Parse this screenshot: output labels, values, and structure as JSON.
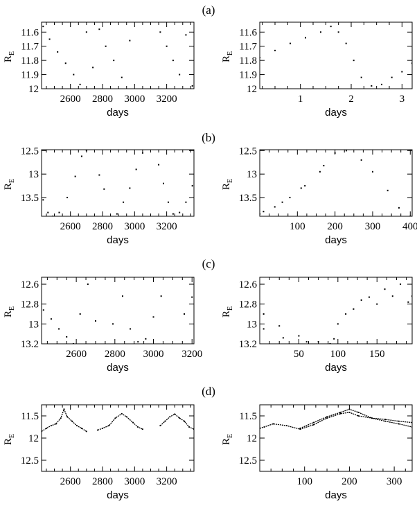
{
  "chart_data": [
    {
      "type": "scatter",
      "row_label": "(a)",
      "ylabel": "R",
      "ylabel_sub": "E",
      "xlabel": "days",
      "xlim": [
        2420,
        3370
      ],
      "ylim": [
        12.0,
        11.53
      ],
      "y_inverted": true,
      "xticks": [
        2600,
        2800,
        3000,
        3200
      ],
      "yticks": [
        11.6,
        11.7,
        11.8,
        11.9,
        12
      ],
      "ytick_labels": [
        "11.6",
        "11.7",
        "11.8",
        "11.9",
        "12"
      ],
      "series": [
        {
          "kind": "scatter",
          "segments": [
            {
              "x": [
                2430,
                2470,
                2520,
                2570,
                2620,
                2660,
                2700,
                2740
              ],
              "y": [
                11.56,
                11.65,
                11.74,
                11.82,
                11.9,
                11.97,
                11.6,
                11.85
              ]
            },
            {
              "x": [
                2780,
                2820,
                2870,
                2920,
                2970
              ],
              "y": [
                11.58,
                11.7,
                11.8,
                11.92,
                11.66
              ]
            },
            {
              "x": [
                3160,
                3200,
                3240,
                3280,
                3320,
                3360
              ],
              "y": [
                11.6,
                11.7,
                11.8,
                11.9,
                11.62,
                11.98
              ]
            }
          ]
        }
      ]
    },
    {
      "type": "scatter",
      "row_label": "",
      "ylabel": "R",
      "ylabel_sub": "E",
      "xlabel": "days",
      "xlim": [
        0.2,
        3.2
      ],
      "ylim": [
        12.0,
        11.53
      ],
      "y_inverted": true,
      "xticks": [
        1,
        2,
        3
      ],
      "yticks": [
        11.6,
        11.7,
        11.8,
        11.9,
        12
      ],
      "ytick_labels": [
        "11.6",
        "11.7",
        "11.8",
        "11.9",
        "12"
      ],
      "series": [
        {
          "kind": "scatter",
          "segments": [
            {
              "x": [
                0.2,
                0.5,
                0.8,
                1.1,
                1.4,
                1.6,
                1.75,
                1.9,
                2.05,
                2.2,
                2.4,
                2.6,
                2.8,
                3.0,
                3.2
              ],
              "y": [
                11.78,
                11.73,
                11.68,
                11.64,
                11.6,
                11.56,
                11.6,
                11.68,
                11.8,
                11.92,
                11.98,
                11.97,
                11.92,
                11.88,
                11.82
              ]
            }
          ]
        }
      ]
    },
    {
      "type": "scatter",
      "row_label": "(b)",
      "ylabel": "R",
      "ylabel_sub": "E",
      "xlabel": "days",
      "xlim": [
        2420,
        3370
      ],
      "ylim": [
        13.9,
        12.48
      ],
      "y_inverted": true,
      "xticks": [
        2600,
        2800,
        3000,
        3200
      ],
      "yticks": [
        12.5,
        13,
        13.5
      ],
      "ytick_labels": [
        "12.5",
        "13",
        "13.5"
      ],
      "series": [
        {
          "kind": "scatter",
          "segments": [
            {
              "x": [
                2430,
                2460,
                2490,
                2530,
                2580,
                2630,
                2670,
                2700
              ],
              "y": [
                13.55,
                13.82,
                13.9,
                13.82,
                13.5,
                13.05,
                12.62,
                12.5
              ]
            },
            {
              "x": [
                2780,
                2810
              ],
              "y": [
                13.02,
                13.32
              ]
            },
            {
              "x": [
                2890,
                2930,
                2970,
                3010,
                3050
              ],
              "y": [
                13.85,
                13.6,
                13.3,
                12.9,
                12.55
              ]
            },
            {
              "x": [
                3150,
                3180,
                3210,
                3240,
                3280,
                3320,
                3360
              ],
              "y": [
                12.8,
                13.2,
                13.6,
                13.85,
                13.82,
                13.6,
                13.25
              ]
            }
          ]
        }
      ]
    },
    {
      "type": "scatter",
      "row_label": "",
      "ylabel": "R",
      "ylabel_sub": "E",
      "xlabel": "days",
      "xlim": [
        0,
        405
      ],
      "ylim": [
        13.9,
        12.48
      ],
      "y_inverted": true,
      "xticks": [
        100,
        200,
        300,
        400
      ],
      "yticks": [
        12.5,
        13,
        13.5
      ],
      "ytick_labels": [
        "12.5",
        "13",
        "13.5"
      ],
      "series": [
        {
          "kind": "scatter",
          "segments": [
            {
              "x": [
                0,
                40,
                80,
                120,
                160,
                200,
                230,
                270,
                300,
                340,
                370,
                400
              ],
              "y": [
                13.85,
                13.7,
                13.5,
                13.25,
                12.95,
                12.55,
                12.5,
                12.7,
                12.95,
                13.35,
                13.72,
                13.9
              ]
            },
            {
              "x": [
                10,
                60,
                110,
                170
              ],
              "y": [
                13.8,
                13.6,
                13.3,
                12.82
              ]
            }
          ]
        }
      ]
    },
    {
      "type": "scatter",
      "row_label": "(c)",
      "ylabel": "R",
      "ylabel_sub": "E",
      "xlabel": "days",
      "xlim": [
        2420,
        3210
      ],
      "ylim": [
        13.2,
        12.53
      ],
      "y_inverted": true,
      "xticks": [
        2600,
        2800,
        3000,
        3200
      ],
      "yticks": [
        12.6,
        12.8,
        13,
        13.2
      ],
      "ytick_labels": [
        "12.6",
        "12.8",
        "13",
        "13.2"
      ],
      "series": [
        {
          "kind": "scatter",
          "segments": [
            {
              "x": [
                2430,
                2470,
                2510,
                2550,
                2585
              ],
              "y": [
                12.86,
                12.95,
                13.05,
                13.13,
                13.2
              ]
            },
            {
              "x": [
                2620,
                2660,
                2700
              ],
              "y": [
                12.9,
                12.6,
                12.97
              ]
            },
            {
              "x": [
                2790,
                2840,
                2880,
                2920,
                2960
              ],
              "y": [
                13.0,
                12.72,
                13.05,
                13.18,
                13.15
              ]
            },
            {
              "x": [
                3000,
                3040
              ],
              "y": [
                12.93,
                12.72
              ]
            },
            {
              "x": [
                3160,
                3200
              ],
              "y": [
                12.9,
                12.73
              ]
            }
          ]
        }
      ]
    },
    {
      "type": "scatter",
      "row_label": "",
      "ylabel": "R",
      "ylabel_sub": "E",
      "xlabel": "days",
      "xlim": [
        0,
        195
      ],
      "ylim": [
        13.2,
        12.53
      ],
      "y_inverted": true,
      "xticks": [
        50,
        100,
        150
      ],
      "yticks": [
        12.6,
        12.8,
        13,
        13.2
      ],
      "ytick_labels": [
        "12.6",
        "12.8",
        "13",
        "13.2"
      ],
      "series": [
        {
          "kind": "scatter",
          "segments": [
            {
              "x": [
                5,
                25,
                50,
                75,
                95,
                110,
                130,
                150,
                170,
                190
              ],
              "y": [
                12.9,
                13.02,
                13.12,
                13.18,
                13.15,
                12.9,
                12.76,
                12.8,
                12.72,
                12.78
              ]
            },
            {
              "x": [
                5,
                30,
                60,
                90,
                100,
                120,
                140,
                160,
                180,
                195
              ],
              "y": [
                13.05,
                13.14,
                13.18,
                13.2,
                13.0,
                12.85,
                12.73,
                12.65,
                12.6,
                12.72
              ]
            }
          ]
        }
      ]
    },
    {
      "type": "line",
      "row_label": "(d)",
      "ylabel": "R",
      "ylabel_sub": "E",
      "xlabel": "days",
      "xlim": [
        2420,
        3370
      ],
      "ylim": [
        12.75,
        11.25
      ],
      "y_inverted": true,
      "xticks": [
        2600,
        2800,
        3000,
        3200
      ],
      "yticks": [
        11.5,
        12,
        12.5
      ],
      "ytick_labels": [
        "11.5",
        "12",
        "12.5"
      ],
      "series": [
        {
          "kind": "line",
          "segments": [
            {
              "x": [
                2420,
                2450,
                2480,
                2510,
                2540,
                2560,
                2580,
                2610,
                2640,
                2670,
                2700
              ],
              "y": [
                11.85,
                11.78,
                11.72,
                11.68,
                11.55,
                11.35,
                11.52,
                11.62,
                11.72,
                11.78,
                11.85
              ]
            },
            {
              "x": [
                2770,
                2800,
                2840,
                2880,
                2920,
                2950,
                2990,
                3020,
                3050
              ],
              "y": [
                11.82,
                11.78,
                11.72,
                11.55,
                11.45,
                11.52,
                11.65,
                11.75,
                11.8
              ]
            },
            {
              "x": [
                3160,
                3190,
                3220,
                3250,
                3280,
                3310,
                3340,
                3370
              ],
              "y": [
                11.72,
                11.62,
                11.52,
                11.46,
                11.55,
                11.62,
                11.75,
                11.8
              ]
            }
          ]
        }
      ]
    },
    {
      "type": "line",
      "row_label": "",
      "ylabel": "R",
      "ylabel_sub": "E",
      "xlabel": "days",
      "xlim": [
        0,
        340
      ],
      "ylim": [
        12.75,
        11.25
      ],
      "y_inverted": true,
      "xticks": [
        100,
        200,
        300
      ],
      "yticks": [
        11.5,
        12,
        12.5
      ],
      "ytick_labels": [
        "11.5",
        "12",
        "12.5"
      ],
      "series": [
        {
          "kind": "line",
          "segments": [
            {
              "x": [
                0,
                10,
                30,
                60,
                90,
                120,
                150,
                180,
                200,
                220,
                250,
                280,
                310,
                340
              ],
              "y": [
                11.78,
                11.75,
                11.68,
                11.72,
                11.8,
                11.7,
                11.55,
                11.45,
                11.42,
                11.5,
                11.55,
                11.62,
                11.68,
                11.75
              ]
            },
            {
              "x": [
                90,
                120,
                150,
                180,
                200,
                220,
                250,
                280,
                310,
                340
              ],
              "y": [
                11.78,
                11.65,
                11.52,
                11.42,
                11.35,
                11.42,
                11.55,
                11.58,
                11.62,
                11.65
              ]
            }
          ]
        }
      ]
    }
  ]
}
